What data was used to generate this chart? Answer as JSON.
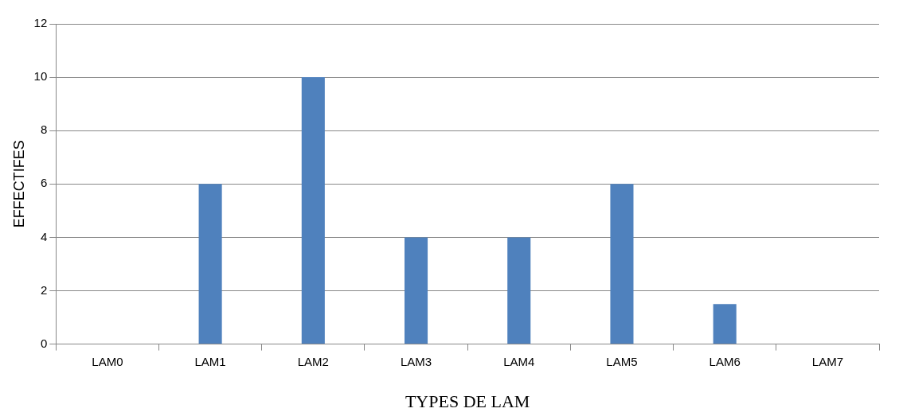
{
  "chart_data": {
    "type": "bar",
    "xlabel": "TYPES DE LAM",
    "ylabel": "EFFECTIFES",
    "categories": [
      "LAM0",
      "LAM1",
      "LAM2",
      "LAM3",
      "LAM4",
      "LAM5",
      "LAM6",
      "LAM7"
    ],
    "values": [
      0,
      6,
      10,
      4,
      4,
      6,
      1.5,
      0
    ],
    "color": "#4f81bd",
    "ylim": [
      0,
      12
    ],
    "yticks": [
      0,
      2,
      4,
      6,
      8,
      10,
      12
    ],
    "grid": "y",
    "legend": false
  }
}
